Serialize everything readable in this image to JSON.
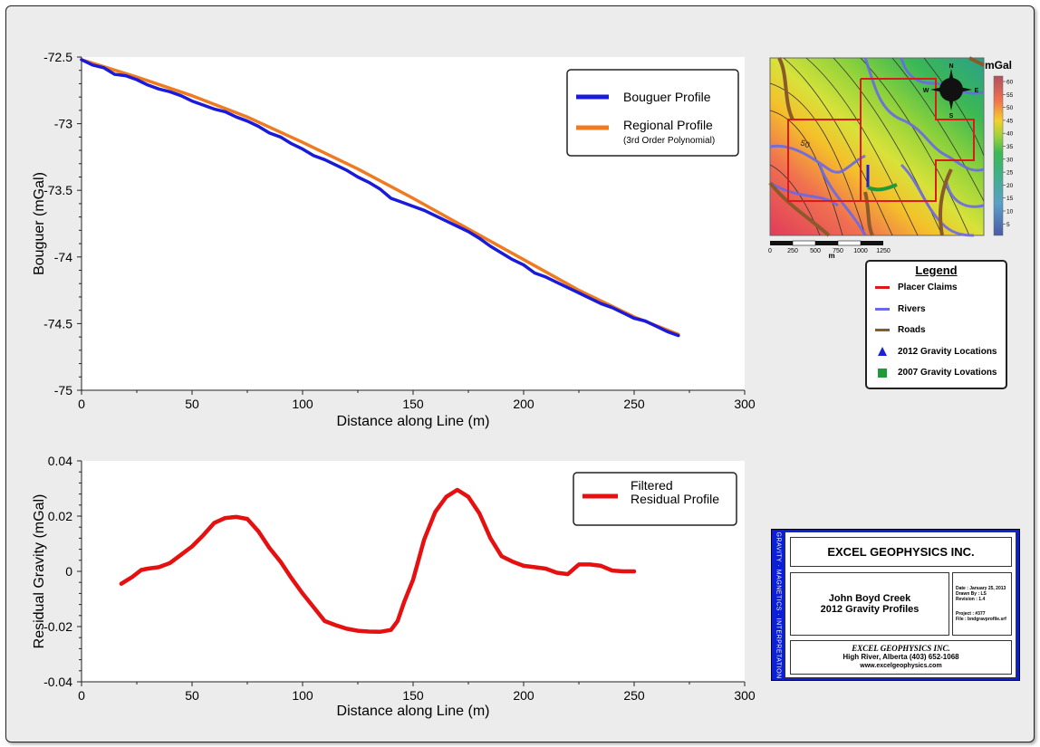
{
  "colors": {
    "bouguer": "#1a1adb",
    "regional": "#f07a1f",
    "residual": "#e61010",
    "claims": "#dd1a1a",
    "rivers": "#6a6ae6",
    "roads": "#8b5a2b",
    "gravity2012": "#1a22d8",
    "gravity2007": "#1f9a3a",
    "titleblock_band": "#0a1fd6"
  },
  "chart_data": [
    {
      "type": "line",
      "xlabel": "Distance along Line (m)",
      "ylabel": "Bouguer (mGal)",
      "xlim": [
        0,
        300
      ],
      "ylim": [
        -75,
        -72.5
      ],
      "xticks": [
        "0",
        "50",
        "100",
        "150",
        "200",
        "250",
        "300"
      ],
      "yticks": [
        "-72.5",
        "-73",
        "-73.5",
        "-74",
        "-74.5",
        "-75"
      ],
      "legend_position": "top-right",
      "series": [
        {
          "name": "Bouguer Profile",
          "color": "#1a1adb",
          "x": [
            0,
            5,
            10,
            15,
            20,
            25,
            30,
            35,
            40,
            45,
            50,
            55,
            60,
            65,
            70,
            75,
            80,
            85,
            90,
            95,
            100,
            105,
            110,
            115,
            120,
            125,
            130,
            135,
            140,
            145,
            150,
            155,
            160,
            165,
            170,
            175,
            180,
            185,
            190,
            195,
            200,
            205,
            210,
            215,
            220,
            225,
            230,
            235,
            240,
            245,
            250,
            255,
            260,
            265,
            270
          ],
          "y": [
            -72.52,
            -72.56,
            -72.58,
            -72.63,
            -72.64,
            -72.67,
            -72.71,
            -72.74,
            -72.76,
            -72.79,
            -72.83,
            -72.86,
            -72.89,
            -72.91,
            -72.95,
            -72.98,
            -73.02,
            -73.07,
            -73.1,
            -73.15,
            -73.19,
            -73.24,
            -73.27,
            -73.31,
            -73.35,
            -73.4,
            -73.44,
            -73.49,
            -73.56,
            -73.59,
            -73.62,
            -73.65,
            -73.69,
            -73.73,
            -73.77,
            -73.81,
            -73.86,
            -73.92,
            -73.97,
            -74.02,
            -74.06,
            -74.12,
            -74.15,
            -74.19,
            -74.23,
            -74.27,
            -74.31,
            -74.35,
            -74.38,
            -74.42,
            -74.46,
            -74.48,
            -74.52,
            -74.56,
            -74.59
          ]
        },
        {
          "name": "Regional Profile",
          "color": "#f07a1f",
          "x": [
            0,
            25,
            50,
            75,
            100,
            125,
            150,
            175,
            200,
            225,
            250,
            270
          ],
          "y": [
            -72.52,
            -72.65,
            -72.79,
            -72.95,
            -73.14,
            -73.34,
            -73.56,
            -73.79,
            -74.02,
            -74.25,
            -74.45,
            -74.58
          ]
        }
      ],
      "legend_note": "(3rd Order Polynomial)"
    },
    {
      "type": "line",
      "xlabel": "Distance along Line (m)",
      "ylabel": "Residual Gravity (mGal)",
      "xlim": [
        0,
        300
      ],
      "ylim": [
        -0.04,
        0.04
      ],
      "xticks": [
        "0",
        "50",
        "100",
        "150",
        "200",
        "250",
        "300"
      ],
      "yticks": [
        "0.04",
        "0.02",
        "0",
        "-0.02",
        "-0.04"
      ],
      "legend_position": "top-right",
      "series": [
        {
          "name": "Filtered Residual Profile",
          "color": "#e61010",
          "x": [
            18,
            23,
            27,
            30,
            35,
            40,
            45,
            50,
            55,
            60,
            65,
            70,
            75,
            80,
            85,
            90,
            95,
            100,
            105,
            110,
            115,
            120,
            125,
            130,
            135,
            140,
            143,
            146,
            150,
            155,
            160,
            165,
            170,
            175,
            180,
            185,
            190,
            195,
            200,
            205,
            210,
            215,
            220,
            225,
            230,
            235,
            240,
            245,
            250
          ],
          "y": [
            -0.0045,
            -0.002,
            0.0005,
            0.001,
            0.0015,
            0.003,
            0.006,
            0.009,
            0.013,
            0.0175,
            0.0193,
            0.0197,
            0.019,
            0.0145,
            0.0085,
            0.0035,
            -0.0025,
            -0.008,
            -0.013,
            -0.018,
            -0.0195,
            -0.0208,
            -0.0215,
            -0.0218,
            -0.0219,
            -0.0212,
            -0.018,
            -0.011,
            -0.003,
            0.0115,
            0.0215,
            0.027,
            0.0295,
            0.027,
            0.021,
            0.012,
            0.0055,
            0.0035,
            0.002,
            0.0015,
            0.001,
            -0.0005,
            -0.001,
            0.0025,
            0.0025,
            0.002,
            0.0003,
            0.0,
            0.0
          ]
        }
      ]
    }
  ],
  "map": {
    "unit_label": "mGal",
    "colorbar_ticks": [
      "60",
      "55",
      "50",
      "45",
      "40",
      "35",
      "30",
      "25",
      "20",
      "15",
      "10",
      "5"
    ],
    "contour_label": "50",
    "compass": {
      "n": "N",
      "s": "S",
      "e": "E",
      "w": "W"
    },
    "scale_labels": [
      "0",
      "250",
      "500",
      "750",
      "1000",
      "1250"
    ],
    "scale_unit": "m"
  },
  "legend": {
    "title": "Legend",
    "items": [
      {
        "label": "Placer Claims",
        "symbol": "line",
        "color": "#dd1a1a"
      },
      {
        "label": "Rivers",
        "symbol": "line",
        "color": "#6a6ae6"
      },
      {
        "label": "Roads",
        "symbol": "line",
        "color": "#8b5a2b"
      },
      {
        "label": "2012 Gravity Locations",
        "symbol": "triangle",
        "color": "#1a22d8"
      },
      {
        "label": "2007 Gravity Lovations",
        "symbol": "square",
        "color": "#1f9a3a"
      }
    ]
  },
  "titleblock": {
    "side_text": "GRAVITY · MAGNETICS · INTERPRETATION",
    "company": "EXCEL GEOPHYSICS INC.",
    "project_line1": "John Boyd Creek",
    "project_line2": "2012 Gravity Profiles",
    "date": "Date : January 25, 2013",
    "drawn_by": "Drawn By : LS",
    "revision": "Revision : 1.4",
    "project_no": "Project : #377",
    "file": "File : bndgravprofile.srf",
    "footer_company": "EXCEL GEOPHYSICS INC.",
    "address": "High River, Alberta (403) 652-1068",
    "website": "www.excelgeophysics.com"
  }
}
